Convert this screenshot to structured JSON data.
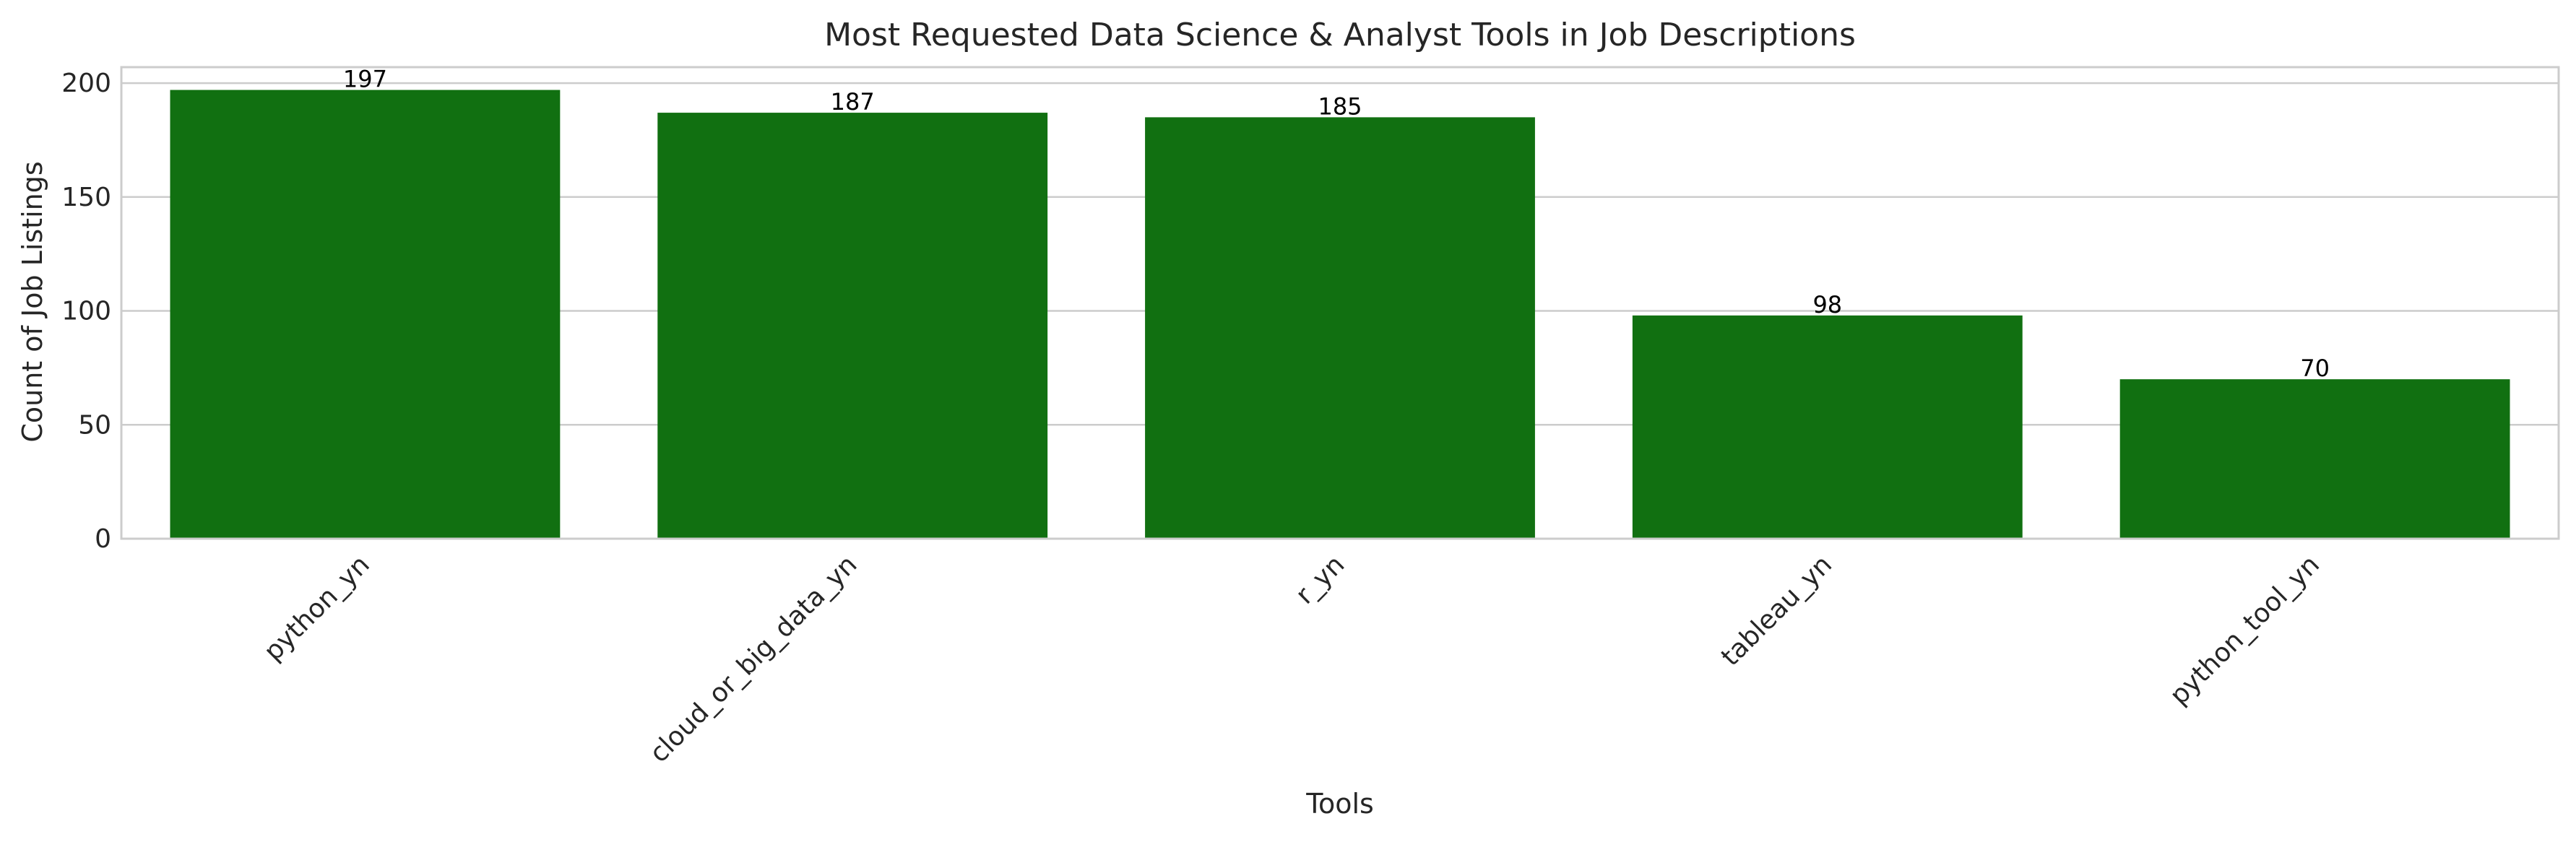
{
  "chart_data": {
    "type": "bar",
    "title": "Most Requested Data Science & Analyst Tools in Job Descriptions",
    "xlabel": "Tools",
    "ylabel": "Count of Job Listings",
    "categories": [
      "python_yn",
      "cloud_or_big_data_yn",
      "r_yn",
      "tableau_yn",
      "python_tool_yn"
    ],
    "values": [
      197,
      187,
      185,
      98,
      70
    ],
    "data_labels": [
      "197",
      "187",
      "185",
      "98",
      "70"
    ],
    "ylim": [
      0,
      207
    ],
    "yticks": [
      0,
      50,
      100,
      150,
      200
    ],
    "ytick_labels": [
      "0",
      "50",
      "100",
      "150",
      "200"
    ],
    "grid": true,
    "x_tick_rotation": 45,
    "colors": {
      "bar": "#117011",
      "grid": "#cccccc",
      "text": "#262626"
    }
  }
}
